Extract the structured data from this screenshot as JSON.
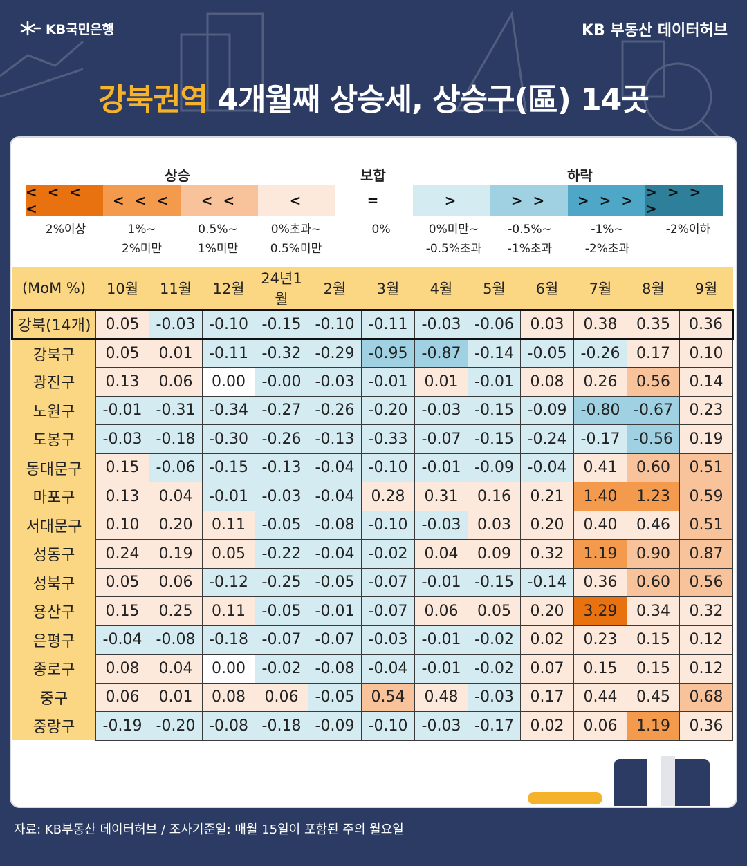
{
  "header": {
    "bank": "KB국민은행",
    "hub": "KB 부동산  데이터허브"
  },
  "title": {
    "highlight": "강북권역",
    "rest": " 4개월째 상승세, 상승구(區) 14곳"
  },
  "colors": {
    "background": "#2b3b63",
    "accent": "#f5b32c",
    "header_cell": "#fbd783",
    "up4": "#e8720f",
    "up3": "#f39a4c",
    "up2": "#f8c39a",
    "up1": "#fde9dc",
    "down1": "#d5ebf2",
    "down2": "#9fd1e2",
    "down3": "#4ea7c7",
    "down4": "#2e7f99"
  },
  "legend": {
    "groups": [
      "상승",
      "보합",
      "하락"
    ],
    "items": [
      {
        "symbol": "<<<<",
        "label1": "2%이상",
        "label2": "",
        "color": "#e8720f"
      },
      {
        "symbol": "<<<",
        "label1": "1%~",
        "label2": "2%미만",
        "color": "#f39a4c"
      },
      {
        "symbol": "<<",
        "label1": "0.5%~",
        "label2": "1%미만",
        "color": "#f8c39a"
      },
      {
        "symbol": "<",
        "label1": "0%초과~",
        "label2": "0.5%미만",
        "color": "#fde9dc"
      },
      {
        "symbol": "=",
        "label1": "0%",
        "label2": "",
        "color": "#ffffff"
      },
      {
        "symbol": ">",
        "label1": "0%미만~",
        "label2": "-0.5%초과",
        "color": "#d5ebf2"
      },
      {
        "symbol": ">>",
        "label1": "-0.5%~",
        "label2": "-1%초과",
        "color": "#9fd1e2"
      },
      {
        "symbol": ">>>",
        "label1": "-1%~",
        "label2": "-2%초과",
        "color": "#4ea7c7"
      },
      {
        "symbol": ">>>>",
        "label1": "-2%이하",
        "label2": "",
        "color": "#2e7f99"
      }
    ]
  },
  "chart_data": {
    "type": "heatmap",
    "corner_label": "(MoM %)",
    "columns": [
      "10월",
      "11월",
      "12월",
      "24년1월",
      "2월",
      "3월",
      "4월",
      "5월",
      "6월",
      "7월",
      "8월",
      "9월"
    ],
    "rows": [
      {
        "name": "강북(14개)",
        "values": [
          "0.05",
          "-0.03",
          "-0.10",
          "-0.15",
          "-0.10",
          "-0.11",
          "-0.03",
          "-0.06",
          "0.03",
          "0.38",
          "0.35",
          "0.36"
        ]
      },
      {
        "name": "강북구",
        "values": [
          "0.05",
          "0.01",
          "-0.11",
          "-0.32",
          "-0.29",
          "-0.95",
          "-0.87",
          "-0.14",
          "-0.05",
          "-0.26",
          "0.17",
          "0.10"
        ]
      },
      {
        "name": "광진구",
        "values": [
          "0.13",
          "0.06",
          "0.00",
          "-0.00",
          "-0.03",
          "-0.01",
          "0.01",
          "-0.01",
          "0.08",
          "0.26",
          "0.56",
          "0.14"
        ]
      },
      {
        "name": "노원구",
        "values": [
          "-0.01",
          "-0.31",
          "-0.34",
          "-0.27",
          "-0.26",
          "-0.20",
          "-0.03",
          "-0.15",
          "-0.09",
          "-0.80",
          "-0.67",
          "0.23"
        ]
      },
      {
        "name": "도봉구",
        "values": [
          "-0.03",
          "-0.18",
          "-0.30",
          "-0.26",
          "-0.13",
          "-0.33",
          "-0.07",
          "-0.15",
          "-0.24",
          "-0.17",
          "-0.56",
          "0.19"
        ]
      },
      {
        "name": "동대문구",
        "values": [
          "0.15",
          "-0.06",
          "-0.15",
          "-0.13",
          "-0.04",
          "-0.10",
          "-0.01",
          "-0.09",
          "-0.04",
          "0.41",
          "0.60",
          "0.51"
        ]
      },
      {
        "name": "마포구",
        "values": [
          "0.13",
          "0.04",
          "-0.01",
          "-0.03",
          "-0.04",
          "0.28",
          "0.31",
          "0.16",
          "0.21",
          "1.40",
          "1.23",
          "0.59"
        ]
      },
      {
        "name": "서대문구",
        "values": [
          "0.10",
          "0.20",
          "0.11",
          "-0.05",
          "-0.08",
          "-0.10",
          "-0.03",
          "0.03",
          "0.20",
          "0.40",
          "0.46",
          "0.51"
        ]
      },
      {
        "name": "성동구",
        "values": [
          "0.24",
          "0.19",
          "0.05",
          "-0.22",
          "-0.04",
          "-0.02",
          "0.04",
          "0.09",
          "0.32",
          "1.19",
          "0.90",
          "0.87"
        ]
      },
      {
        "name": "성북구",
        "values": [
          "0.05",
          "0.06",
          "-0.12",
          "-0.25",
          "-0.05",
          "-0.07",
          "-0.01",
          "-0.15",
          "-0.14",
          "0.36",
          "0.60",
          "0.56"
        ]
      },
      {
        "name": "용산구",
        "values": [
          "0.15",
          "0.25",
          "0.11",
          "-0.05",
          "-0.01",
          "-0.07",
          "0.06",
          "0.05",
          "0.20",
          "3.29",
          "0.34",
          "0.32"
        ]
      },
      {
        "name": "은평구",
        "values": [
          "-0.04",
          "-0.08",
          "-0.18",
          "-0.07",
          "-0.07",
          "-0.03",
          "-0.01",
          "-0.02",
          "0.02",
          "0.23",
          "0.15",
          "0.12"
        ]
      },
      {
        "name": "종로구",
        "values": [
          "0.08",
          "0.04",
          "0.00",
          "-0.02",
          "-0.08",
          "-0.04",
          "-0.01",
          "-0.02",
          "0.07",
          "0.15",
          "0.15",
          "0.12"
        ]
      },
      {
        "name": "중구",
        "values": [
          "0.06",
          "0.01",
          "0.08",
          "0.06",
          "-0.05",
          "0.54",
          "0.48",
          "-0.03",
          "0.17",
          "0.44",
          "0.45",
          "0.68"
        ]
      },
      {
        "name": "중랑구",
        "values": [
          "-0.19",
          "-0.20",
          "-0.08",
          "-0.18",
          "-0.09",
          "-0.10",
          "-0.03",
          "-0.17",
          "0.02",
          "0.06",
          "1.19",
          "0.36"
        ]
      }
    ]
  },
  "footer": {
    "source": "자료: KB부동산 데이터허브 / 조사기준일: 매월 15일이 포함된 주의 월요일"
  }
}
